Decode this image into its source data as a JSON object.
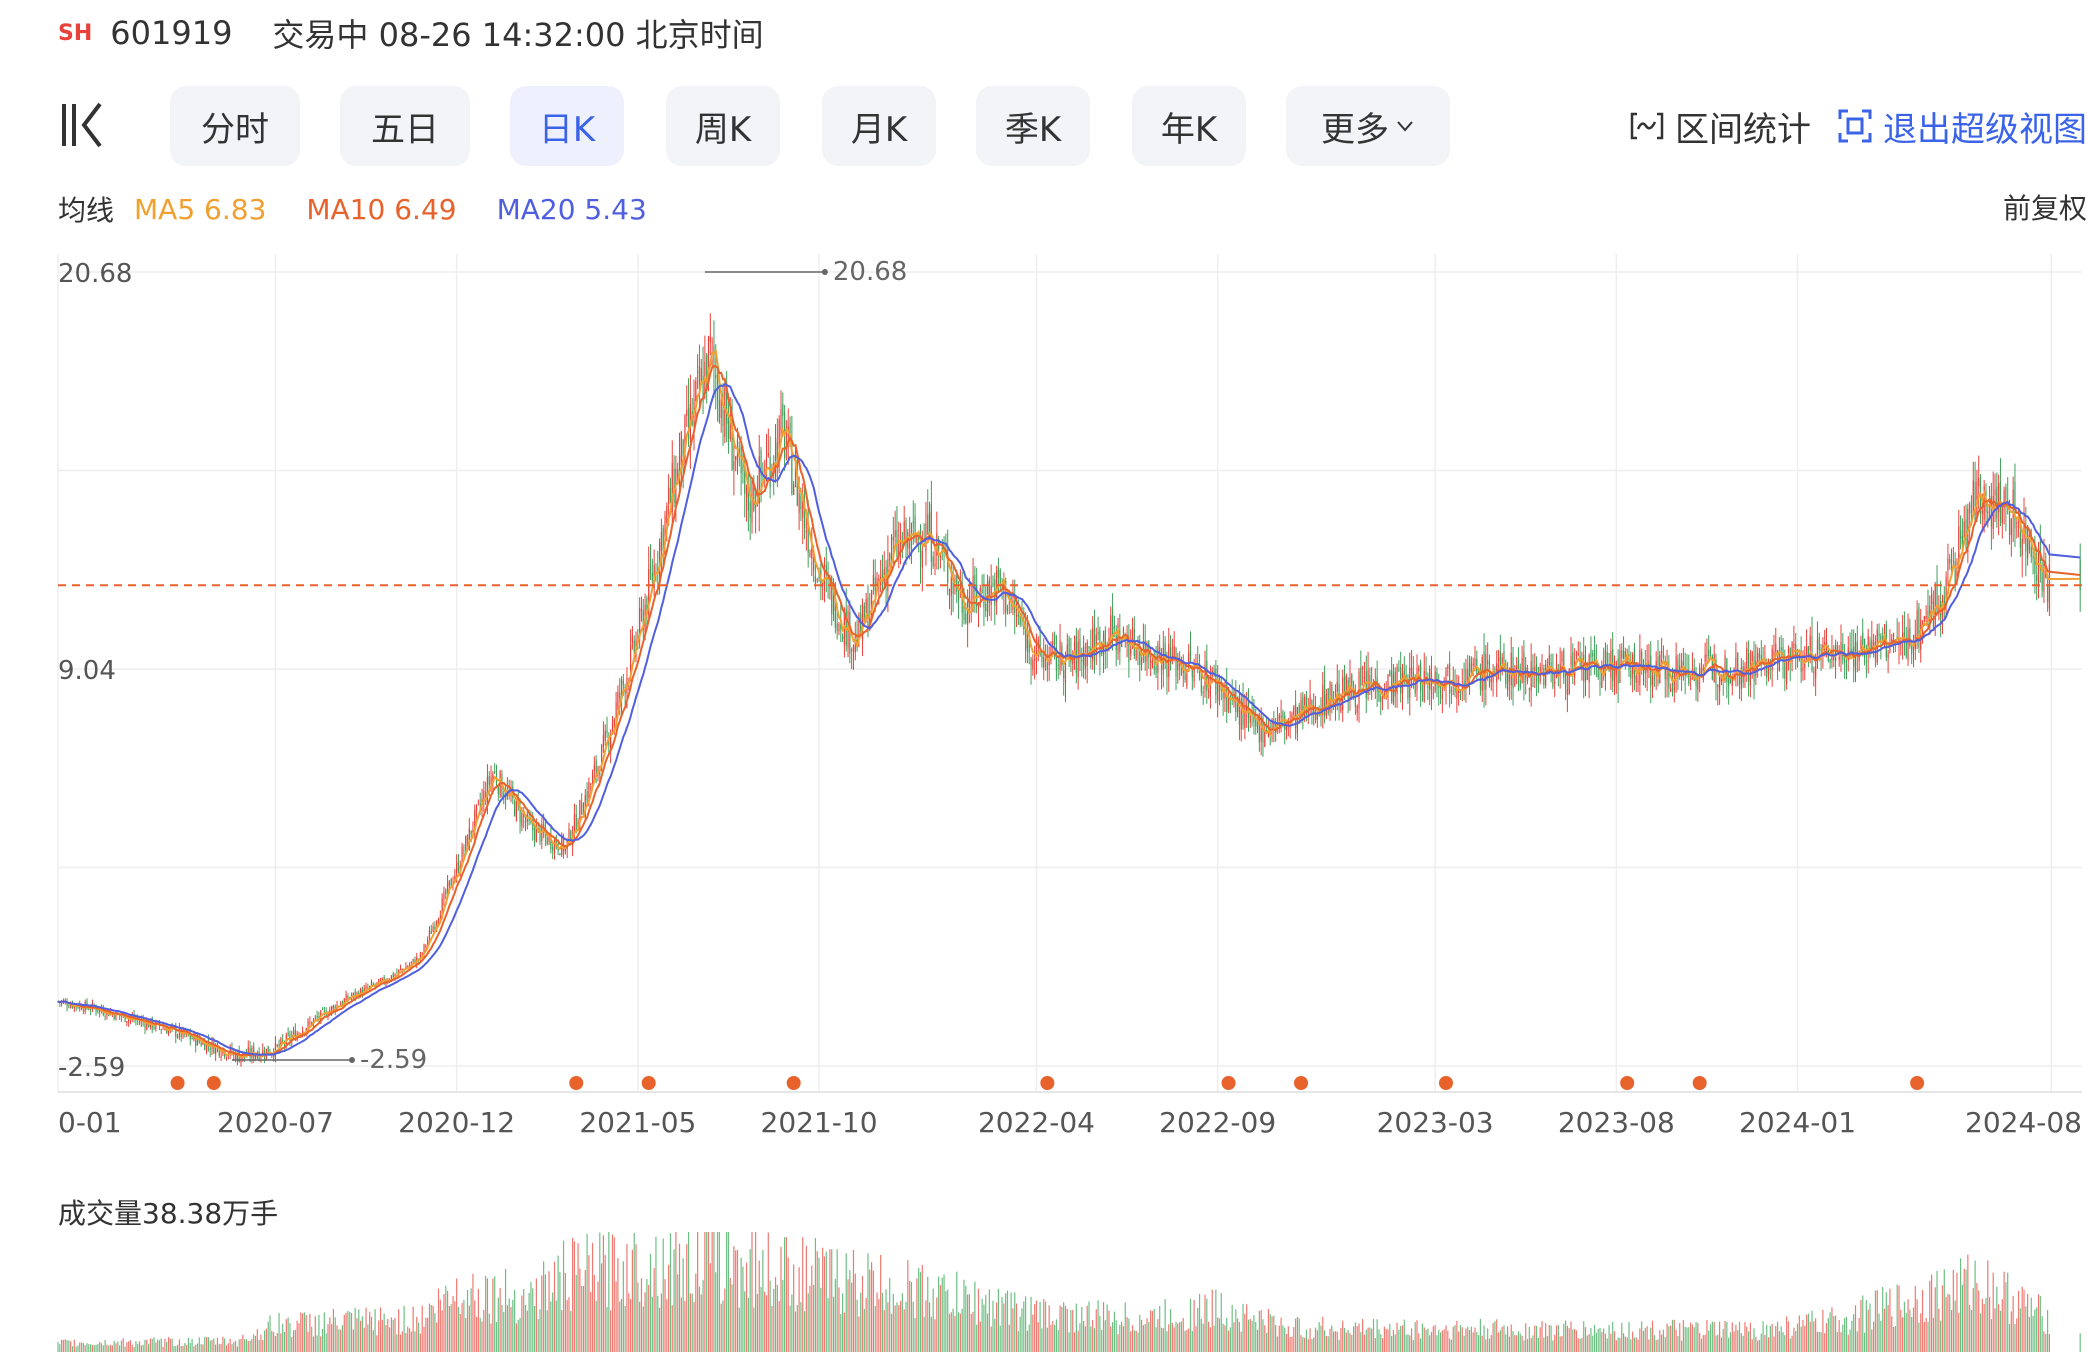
{
  "header": {
    "exchange_badge": "SH",
    "code": "601919",
    "status": "交易中 08-26 14:32:00 北京时间"
  },
  "toolbar": {
    "tabs": [
      {
        "label": "分时",
        "active": false
      },
      {
        "label": "五日",
        "active": false
      },
      {
        "label": "日K",
        "active": true
      },
      {
        "label": "周K",
        "active": false
      },
      {
        "label": "月K",
        "active": false
      },
      {
        "label": "季K",
        "active": false
      },
      {
        "label": "年K",
        "active": false
      },
      {
        "label": "更多",
        "active": false
      }
    ],
    "range_stats": "区间统计",
    "exit_super_view": "退出超级视图"
  },
  "ma_legend": {
    "label": "均线",
    "ma5": "MA5 6.83",
    "ma10": "MA10 6.49",
    "ma20": "MA20 5.43",
    "adjust": "前复权"
  },
  "colors": {
    "up": "#e8413a",
    "down": "#3f9f5a",
    "ma5": "#f0a030",
    "ma10": "#e8632c",
    "ma20": "#4f5fe0",
    "accent": "#3b63e8",
    "dashed": "#e8632c"
  },
  "chart_data": {
    "type": "candlestick",
    "ylim": [
      -2.59,
      20.68
    ],
    "y_tick_labels": [
      "20.68",
      "9.04",
      "-2.59"
    ],
    "max_label": "20.68",
    "min_label": "-2.59",
    "reference_price": 11.5,
    "x_tick_labels": [
      "0-01",
      "2020-07",
      "2020-12",
      "2021-05",
      "2021-10",
      "2022-04",
      "2022-09",
      "2023-03",
      "2023-08",
      "2024-01",
      "2024-08"
    ],
    "close_series": [
      {
        "x": "2020-01",
        "y": -0.7
      },
      {
        "x": "2020-02",
        "y": -0.9
      },
      {
        "x": "2020-03",
        "y": -1.2
      },
      {
        "x": "2020-04",
        "y": -1.5
      },
      {
        "x": "2020-05",
        "y": -1.9
      },
      {
        "x": "2020-06",
        "y": -2.3
      },
      {
        "x": "2020-07",
        "y": -2.1
      },
      {
        "x": "2020-08",
        "y": -1.3
      },
      {
        "x": "2020-09",
        "y": -0.6
      },
      {
        "x": "2020-10",
        "y": -0.1
      },
      {
        "x": "2020-11",
        "y": 0.6
      },
      {
        "x": "2020-12",
        "y": 3.2
      },
      {
        "x": "2021-01",
        "y": 6.0
      },
      {
        "x": "2021-02",
        "y": 4.4
      },
      {
        "x": "2021-03",
        "y": 3.8
      },
      {
        "x": "2021-04",
        "y": 6.5
      },
      {
        "x": "2021-05",
        "y": 10.0
      },
      {
        "x": "2021-06",
        "y": 14.5
      },
      {
        "x": "2021-07",
        "y": 18.3
      },
      {
        "x": "2021-08",
        "y": 13.8
      },
      {
        "x": "2021-09",
        "y": 16.0
      },
      {
        "x": "2021-10",
        "y": 11.8
      },
      {
        "x": "2021-11",
        "y": 9.8
      },
      {
        "x": "2021-12",
        "y": 12.5
      },
      {
        "x": "2022-01",
        "y": 13.1
      },
      {
        "x": "2022-02",
        "y": 11.0
      },
      {
        "x": "2022-03",
        "y": 11.5
      },
      {
        "x": "2022-04",
        "y": 9.4
      },
      {
        "x": "2022-05",
        "y": 9.3
      },
      {
        "x": "2022-06",
        "y": 10.1
      },
      {
        "x": "2022-07",
        "y": 9.6
      },
      {
        "x": "2022-08",
        "y": 9.2
      },
      {
        "x": "2022-09",
        "y": 8.6
      },
      {
        "x": "2022-10",
        "y": 7.3
      },
      {
        "x": "2022-11",
        "y": 7.5
      },
      {
        "x": "2022-12",
        "y": 8.2
      },
      {
        "x": "2023-01",
        "y": 8.5
      },
      {
        "x": "2023-03",
        "y": 8.8
      },
      {
        "x": "2023-05",
        "y": 9.0
      },
      {
        "x": "2023-07",
        "y": 9.0
      },
      {
        "x": "2023-08",
        "y": 9.1
      },
      {
        "x": "2023-10",
        "y": 9.0
      },
      {
        "x": "2023-12",
        "y": 9.2
      },
      {
        "x": "2024-01",
        "y": 9.4
      },
      {
        "x": "2024-03",
        "y": 9.7
      },
      {
        "x": "2024-04",
        "y": 9.8
      },
      {
        "x": "2024-05",
        "y": 11.2
      },
      {
        "x": "2024-06",
        "y": 14.3
      },
      {
        "x": "2024-07",
        "y": 13.5
      },
      {
        "x": "2024-08",
        "y": 11.4
      }
    ],
    "event_markers": [
      "2020-04",
      "2020-05",
      "2021-03",
      "2021-05",
      "2021-09",
      "2022-04",
      "2022-09",
      "2022-11",
      "2023-03",
      "2023-08",
      "2023-10",
      "2024-04"
    ],
    "volume": {
      "title": "成交量38.38万手",
      "levels": [
        {
          "x": "2020-01",
          "v": 0.08
        },
        {
          "x": "2020-06",
          "v": 0.1
        },
        {
          "x": "2020-07",
          "v": 0.25
        },
        {
          "x": "2020-11",
          "v": 0.3
        },
        {
          "x": "2020-12",
          "v": 0.55
        },
        {
          "x": "2021-02",
          "v": 0.5
        },
        {
          "x": "2021-03",
          "v": 0.7
        },
        {
          "x": "2021-05",
          "v": 0.8
        },
        {
          "x": "2021-07",
          "v": 0.85
        },
        {
          "x": "2021-09",
          "v": 0.75
        },
        {
          "x": "2021-11",
          "v": 0.65
        },
        {
          "x": "2022-01",
          "v": 0.55
        },
        {
          "x": "2022-04",
          "v": 0.35
        },
        {
          "x": "2022-07",
          "v": 0.3
        },
        {
          "x": "2022-09",
          "v": 0.4
        },
        {
          "x": "2022-11",
          "v": 0.22
        },
        {
          "x": "2023-06",
          "v": 0.2
        },
        {
          "x": "2023-12",
          "v": 0.2
        },
        {
          "x": "2024-02",
          "v": 0.28
        },
        {
          "x": "2024-05",
          "v": 0.55
        },
        {
          "x": "2024-06",
          "v": 0.65
        },
        {
          "x": "2024-08",
          "v": 0.3
        }
      ]
    }
  }
}
